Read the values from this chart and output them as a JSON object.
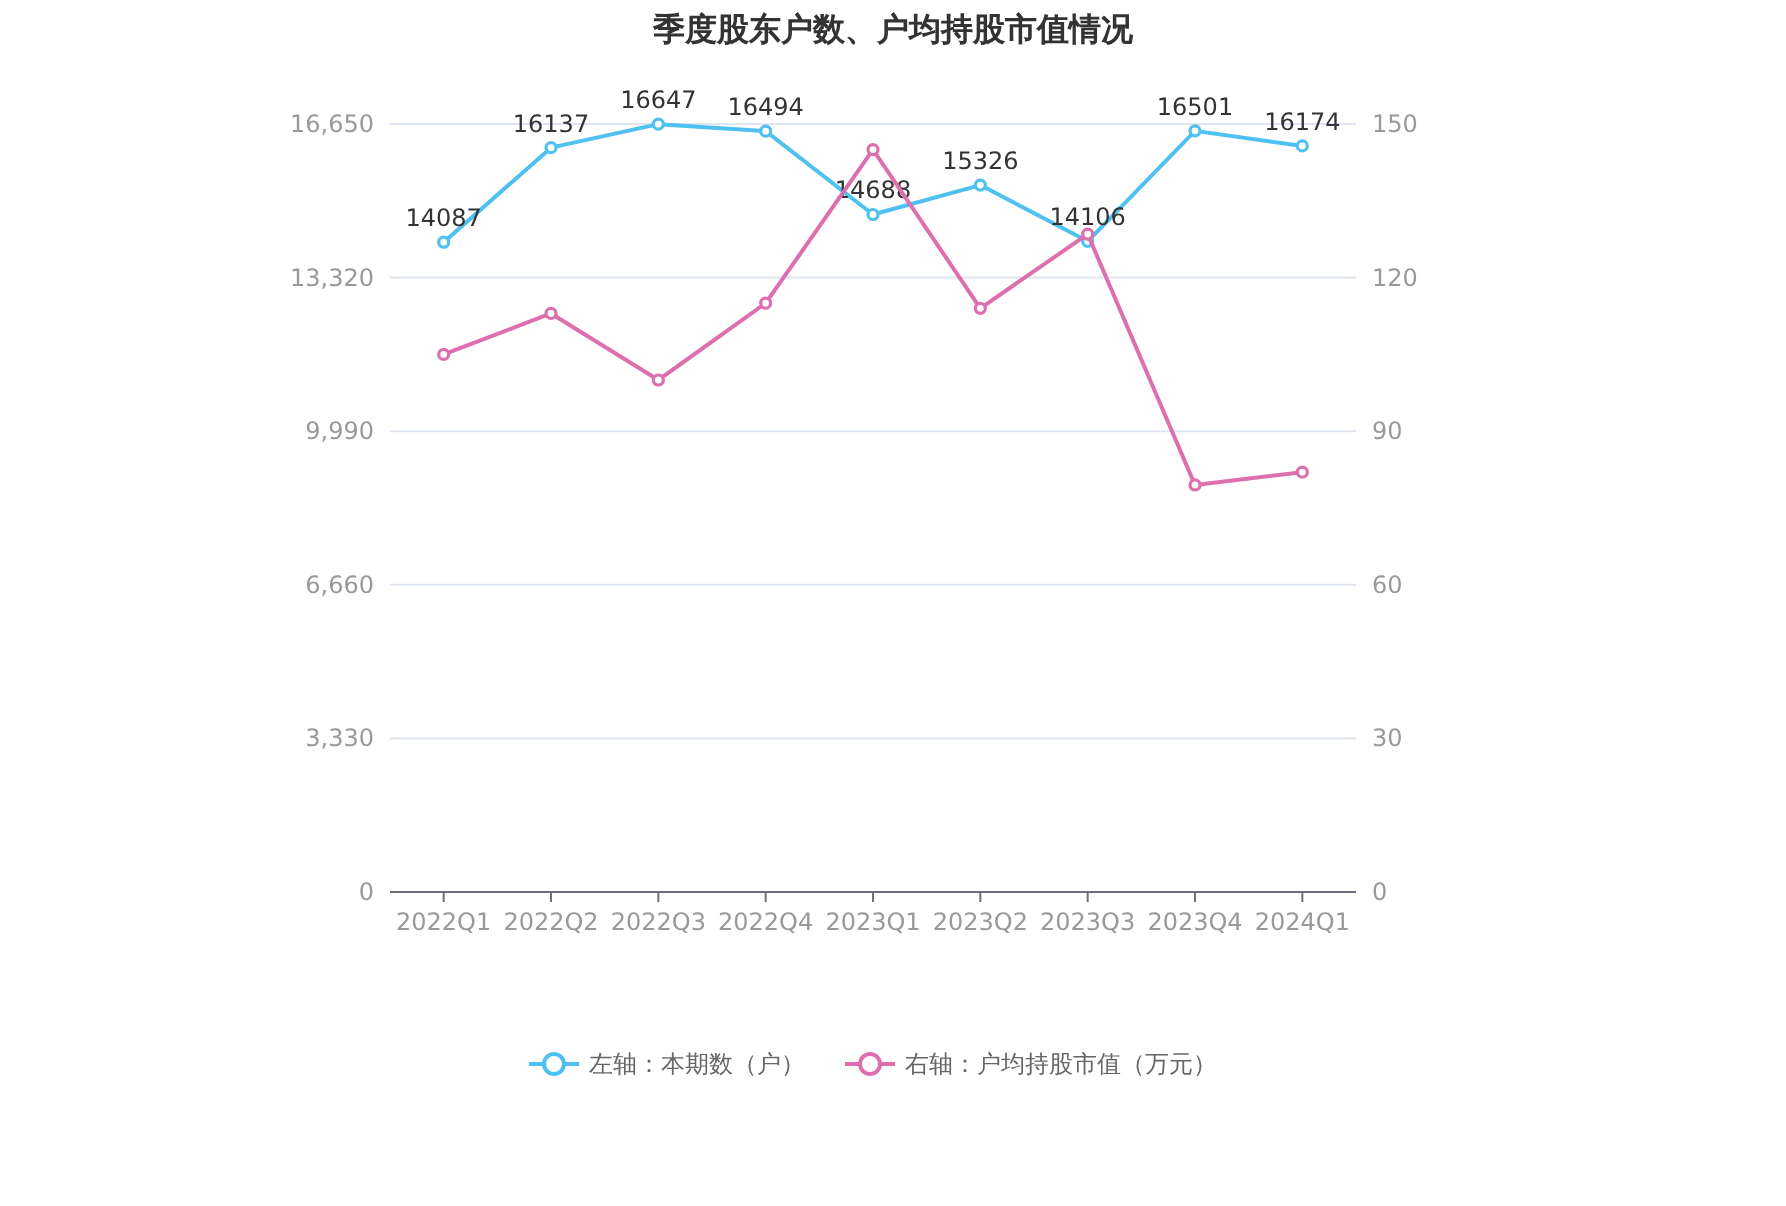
{
  "chart_data": {
    "type": "line",
    "title": "季度股东户数、户均持股市值情况",
    "categories": [
      "2022Q1",
      "2022Q2",
      "2022Q3",
      "2022Q4",
      "2023Q1",
      "2023Q2",
      "2023Q3",
      "2023Q4",
      "2024Q1"
    ],
    "series": [
      {
        "name": "左轴：本期数（户）",
        "color": "#4fc1f0",
        "values": [
          14087,
          16137,
          16647,
          16494,
          14688,
          15326,
          14106,
          16501,
          16174
        ],
        "value_labels": [
          "14087",
          "16137",
          "16647",
          "16494",
          "14688",
          "15326",
          "14106",
          "16501",
          "16174"
        ]
      },
      {
        "name": "右轴：户均持股市值（万元）",
        "color": "#de6faf",
        "axis": "y2",
        "values": [
          105,
          113,
          100,
          115,
          145,
          114,
          128.5,
          79.5,
          82
        ]
      }
    ],
    "ylim": [
      0,
      16650
    ],
    "yticks": [
      {
        "value": 0,
        "label": "0"
      },
      {
        "value": 3330,
        "label": "3,330"
      },
      {
        "value": 6660,
        "label": "6,660"
      },
      {
        "value": 9990,
        "label": "9,990"
      },
      {
        "value": 13320,
        "label": "13,320"
      },
      {
        "value": 16650,
        "label": "16,650"
      }
    ],
    "y2lim": [
      0,
      150
    ],
    "y2ticks": [
      0,
      30,
      60,
      90,
      120,
      150
    ],
    "grid": "y",
    "legend": "bottom",
    "marker": "circle",
    "line_style": "solid"
  }
}
